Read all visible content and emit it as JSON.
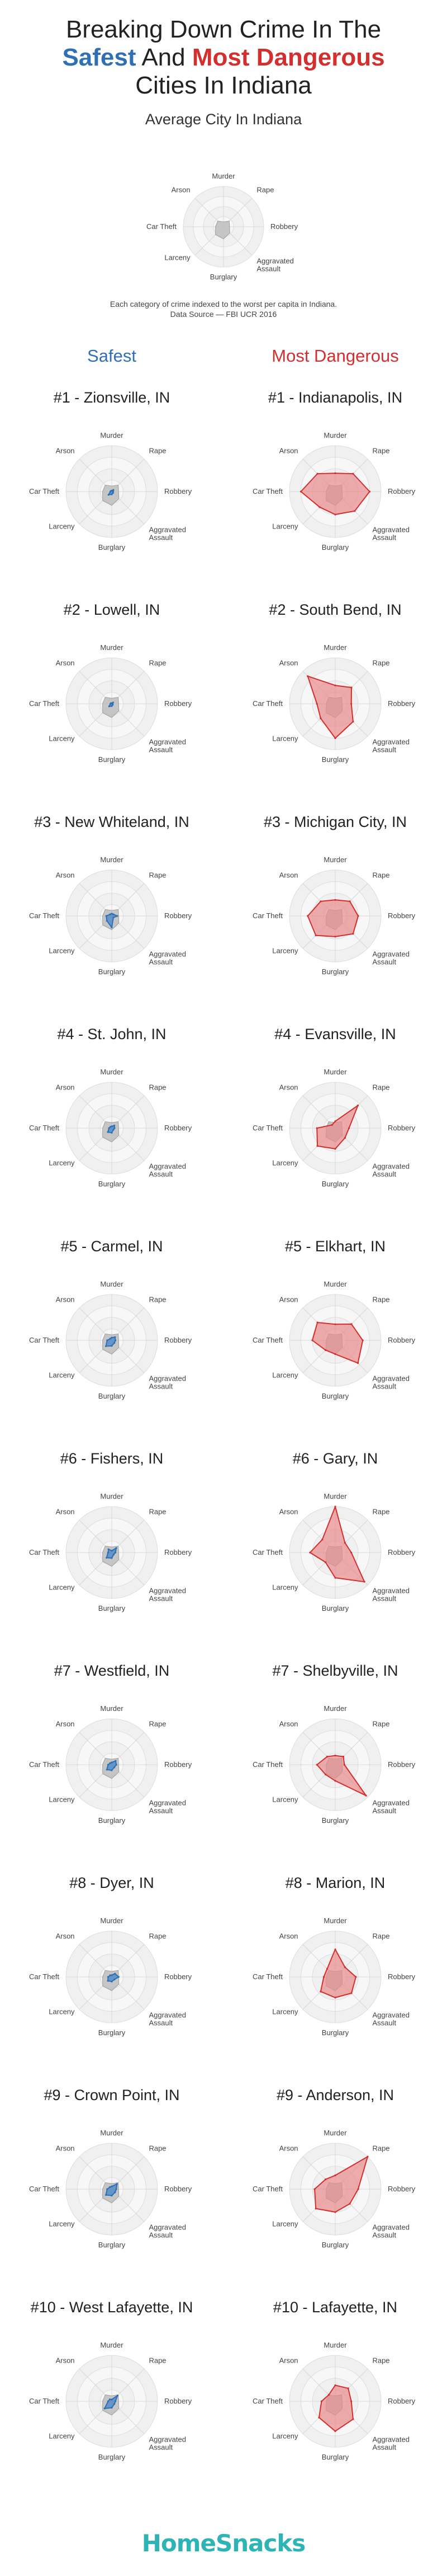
{
  "title": {
    "line1": "Breaking Down Crime In The",
    "safest_word": "Safest",
    "and_word": "And",
    "dangerous_words": "Most Dangerous",
    "line3": "Cities In Indiana"
  },
  "average": {
    "title": "Average City In Indiana",
    "note_line1": "Each category of crime indexed to the worst per capita in Indiana.",
    "note_line2": "Data Source — FBI UCR 2016"
  },
  "columns": {
    "safest": "Safest",
    "dangerous": "Most Dangerous"
  },
  "axes": [
    "Murder",
    "Rape",
    "Robbery",
    "Aggravated Assault",
    "Burglary",
    "Larceny",
    "Car Theft",
    "Arson"
  ],
  "colors": {
    "safest_fill": "#5b8fc9",
    "safest_stroke": "#2f6fb3",
    "danger_fill": "#e88a8a",
    "danger_stroke": "#d32f2f",
    "average_fill": "#bdbdbd",
    "ring_fill": "#f0f0f0",
    "ring_stroke": "#dddddd"
  },
  "brand": "HomeSnacks",
  "chart_data": [
    {
      "type": "radar",
      "name": "Average City In Indiana",
      "axes": [
        "Murder",
        "Rape",
        "Robbery",
        "Aggravated Assault",
        "Burglary",
        "Larceny",
        "Car Theft",
        "Arson"
      ],
      "values": [
        0.12,
        0.2,
        0.15,
        0.22,
        0.3,
        0.28,
        0.2,
        0.2
      ],
      "range": [
        0,
        1
      ]
    },
    {
      "type": "radar",
      "group": "safest",
      "rank": "#1 - Zionsville, IN",
      "values": [
        0.02,
        0.05,
        0.03,
        0.04,
        0.06,
        0.1,
        0.03,
        0.02
      ],
      "range": [
        0,
        1
      ]
    },
    {
      "type": "radar",
      "group": "dangerous",
      "rank": "#1 - Indianapolis, IN",
      "values": [
        0.4,
        0.55,
        0.75,
        0.6,
        0.5,
        0.48,
        0.75,
        0.55
      ],
      "range": [
        0,
        1
      ]
    },
    {
      "type": "radar",
      "group": "safest",
      "rank": "#2 - Lowell, IN",
      "values": [
        0.01,
        0.04,
        0.02,
        0.03,
        0.05,
        0.08,
        0.03,
        0.02
      ],
      "range": [
        0,
        1
      ]
    },
    {
      "type": "radar",
      "group": "dangerous",
      "rank": "#2 - South Bend, IN",
      "values": [
        0.4,
        0.5,
        0.35,
        0.55,
        0.75,
        0.45,
        0.4,
        0.85
      ],
      "range": [
        0,
        1
      ]
    },
    {
      "type": "radar",
      "group": "safest",
      "rank": "#3 - New Whiteland, IN",
      "values": [
        0.05,
        0.05,
        0.12,
        0.05,
        0.25,
        0.15,
        0.12,
        0.05
      ],
      "range": [
        0,
        1
      ]
    },
    {
      "type": "radar",
      "group": "dangerous",
      "rank": "#3 - Michigan City, IN",
      "values": [
        0.35,
        0.45,
        0.5,
        0.55,
        0.45,
        0.6,
        0.6,
        0.45
      ],
      "range": [
        0,
        1
      ]
    },
    {
      "type": "radar",
      "group": "safest",
      "rank": "#4 - St. John, IN",
      "values": [
        0.04,
        0.08,
        0.06,
        0.05,
        0.1,
        0.12,
        0.06,
        0.04
      ],
      "range": [
        0,
        1
      ]
    },
    {
      "type": "radar",
      "group": "dangerous",
      "rank": "#4 - Evansville, IN",
      "values": [
        0.15,
        0.7,
        0.3,
        0.3,
        0.45,
        0.55,
        0.4,
        0.1
      ],
      "range": [
        0,
        1
      ]
    },
    {
      "type": "radar",
      "group": "safest",
      "rank": "#5 - Carmel, IN",
      "values": [
        0.06,
        0.1,
        0.08,
        0.08,
        0.12,
        0.18,
        0.1,
        0.05
      ],
      "range": [
        0,
        1
      ]
    },
    {
      "type": "radar",
      "group": "dangerous",
      "rank": "#5 - Elkhart, IN",
      "values": [
        0.35,
        0.5,
        0.6,
        0.7,
        0.3,
        0.3,
        0.5,
        0.55
      ],
      "range": [
        0,
        1
      ]
    },
    {
      "type": "radar",
      "group": "safest",
      "rank": "#6 - Fishers, IN",
      "values": [
        0.04,
        0.14,
        0.08,
        0.06,
        0.12,
        0.16,
        0.08,
        0.1
      ],
      "range": [
        0,
        1
      ]
    },
    {
      "type": "radar",
      "group": "dangerous",
      "rank": "#6 - Gary, IN",
      "values": [
        1.0,
        0.3,
        0.35,
        0.9,
        0.55,
        0.3,
        0.55,
        0.4
      ],
      "range": [
        0,
        1
      ]
    },
    {
      "type": "radar",
      "group": "safest",
      "rank": "#7 - Westfield, IN",
      "values": [
        0.05,
        0.12,
        0.1,
        0.08,
        0.12,
        0.15,
        0.08,
        0.05
      ],
      "range": [
        0,
        1
      ]
    },
    {
      "type": "radar",
      "group": "dangerous",
      "rank": "#7 - Shelbyville, IN",
      "values": [
        0.2,
        0.25,
        0.2,
        0.95,
        0.35,
        0.3,
        0.4,
        0.25
      ],
      "range": [
        0,
        1
      ]
    },
    {
      "type": "radar",
      "group": "safest",
      "rank": "#8 - Dyer, IN",
      "values": [
        0.04,
        0.1,
        0.15,
        0.08,
        0.1,
        0.12,
        0.08,
        0.05
      ],
      "range": [
        0,
        1
      ]
    },
    {
      "type": "radar",
      "group": "dangerous",
      "rank": "#8 - Marion, IN",
      "values": [
        0.6,
        0.3,
        0.45,
        0.5,
        0.45,
        0.45,
        0.25,
        0.25
      ],
      "range": [
        0,
        1
      ]
    },
    {
      "type": "radar",
      "group": "safest",
      "rank": "#9 - Crown Point, IN",
      "values": [
        0.06,
        0.16,
        0.1,
        0.1,
        0.14,
        0.18,
        0.1,
        0.06
      ],
      "range": [
        0,
        1
      ]
    },
    {
      "type": "radar",
      "group": "dangerous",
      "rank": "#9 - Anderson, IN",
      "values": [
        0.3,
        1.0,
        0.5,
        0.45,
        0.5,
        0.6,
        0.45,
        0.3
      ],
      "range": [
        0,
        1
      ]
    },
    {
      "type": "radar",
      "group": "safest",
      "rank": "#10 - West Lafayette, IN",
      "values": [
        0.04,
        0.18,
        0.08,
        0.08,
        0.14,
        0.22,
        0.08,
        0.06
      ],
      "range": [
        0,
        1
      ]
    },
    {
      "type": "radar",
      "group": "dangerous",
      "rank": "#10 - Lafayette, IN",
      "values": [
        0.35,
        0.4,
        0.35,
        0.55,
        0.65,
        0.5,
        0.3,
        0.2
      ],
      "range": [
        0,
        1
      ]
    }
  ]
}
